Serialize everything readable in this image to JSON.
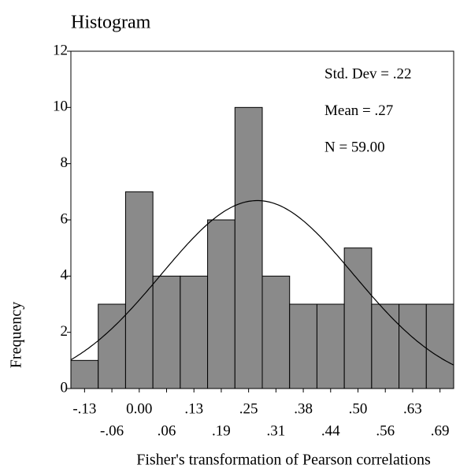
{
  "chart_data": {
    "type": "histogram",
    "title": "Histogram",
    "x_label": "Fisher's transformation of Pearson correlations",
    "y_label": "Frequency",
    "bins": [
      -0.15625,
      -0.09375,
      -0.03125,
      0.03125,
      0.09375,
      0.15625,
      0.21875,
      0.28125,
      0.34375,
      0.40625,
      0.46875,
      0.53125,
      0.59375,
      0.65625,
      0.71875
    ],
    "values": [
      1,
      3,
      7,
      4,
      4,
      6,
      10,
      4,
      3,
      3,
      5,
      3,
      3,
      3
    ],
    "color": "#8a8a8a",
    "xlim": [
      -0.15625,
      0.71875
    ],
    "xticks": [
      {
        "value": -0.125,
        "label": "-.13"
      },
      {
        "value": -0.0625,
        "label": "-.06"
      },
      {
        "value": 0,
        "label": "0.00"
      },
      {
        "value": 0.0625,
        "label": ".06"
      },
      {
        "value": 0.125,
        "label": ".13"
      },
      {
        "value": 0.1875,
        "label": ".19"
      },
      {
        "value": 0.25,
        "label": ".25"
      },
      {
        "value": 0.3125,
        "label": ".31"
      },
      {
        "value": 0.375,
        "label": ".38"
      },
      {
        "value": 0.4375,
        "label": ".44"
      },
      {
        "value": 0.5,
        "label": ".50"
      },
      {
        "value": 0.5625,
        "label": ".56"
      },
      {
        "value": 0.625,
        "label": ".63"
      },
      {
        "value": 0.6875,
        "label": ".69"
      }
    ],
    "ylim": [
      0,
      12
    ],
    "yticks": [
      0,
      2,
      4,
      6,
      8,
      10,
      12
    ],
    "stats": [
      "Std. Dev = .22",
      "Mean = .27",
      "N = 59.00"
    ],
    "normal_curve": {
      "mean": 0.27,
      "std": 0.22,
      "n": 59
    }
  }
}
